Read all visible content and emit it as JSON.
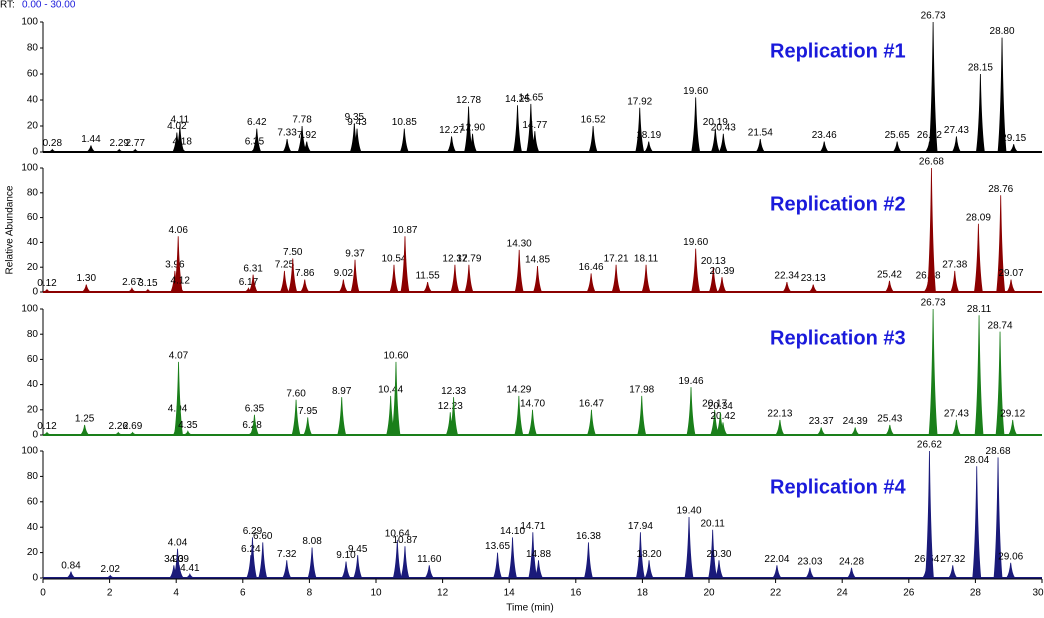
{
  "header": {
    "rt_prefix": "RT:",
    "rt_range": "0.00 - 30.00",
    "xlabel": "Time (min)",
    "ylabel": "Relative Abundance"
  },
  "chart_data": [
    {
      "type": "chromatogram",
      "title": "Replication #1",
      "color": "#000000",
      "x": [
        0.28,
        1.44,
        2.29,
        2.77,
        4.02,
        4.11,
        4.18,
        6.35,
        6.42,
        7.33,
        7.78,
        7.92,
        9.35,
        9.43,
        10.85,
        12.27,
        12.78,
        12.9,
        14.25,
        14.65,
        14.77,
        16.52,
        17.92,
        18.19,
        19.6,
        20.19,
        20.43,
        21.54,
        23.46,
        25.65,
        26.62,
        26.73,
        27.43,
        28.15,
        28.8,
        29.15
      ],
      "x_labels": [
        "0.28",
        "1.44",
        "2.29",
        "2.77",
        "4.02",
        "4.11",
        "4.18",
        "6.35",
        "6.42",
        "7.33",
        "7.78",
        "7.92",
        "9.35",
        "9.43",
        "10.85",
        "12.27",
        "12.78",
        "12.90",
        "14.25",
        "14.65",
        "14.77",
        "16.52",
        "17.92",
        "18.19",
        "19.60",
        "20.19",
        "20.43",
        "21.54",
        "23.46",
        "25.65",
        "26.62",
        "26.73",
        "27.43",
        "28.15",
        "28.80",
        "29.15"
      ],
      "values": [
        2,
        5,
        2,
        2,
        15,
        20,
        3,
        3,
        18,
        10,
        20,
        8,
        22,
        18,
        18,
        12,
        35,
        14,
        36,
        37,
        16,
        20,
        34,
        8,
        42,
        18,
        14,
        10,
        8,
        8,
        8,
        100,
        12,
        60,
        88,
        6
      ],
      "xlim": [
        0,
        30
      ],
      "ylim": [
        0,
        100
      ],
      "yticks": [
        0,
        20,
        40,
        60,
        80,
        100
      ]
    },
    {
      "type": "chromatogram",
      "title": "Replication #2",
      "color": "#8b0000",
      "x": [
        0.12,
        1.3,
        2.67,
        3.15,
        3.96,
        4.06,
        4.12,
        6.17,
        6.31,
        7.25,
        7.5,
        7.86,
        9.02,
        9.37,
        10.54,
        10.87,
        11.55,
        12.37,
        12.79,
        14.3,
        14.85,
        16.46,
        17.21,
        18.11,
        19.6,
        20.13,
        20.39,
        22.34,
        23.13,
        25.42,
        26.58,
        26.68,
        27.38,
        28.09,
        28.76,
        29.07
      ],
      "x_labels": [
        "0.12",
        "1.30",
        "2.67",
        "3.15",
        "3.96",
        "4.06",
        "4.12",
        "6.17",
        "6.31",
        "7.25",
        "7.50",
        "7.86",
        "9.02",
        "9.37",
        "10.54",
        "10.87",
        "11.55",
        "12.37",
        "12.79",
        "14.30",
        "14.85",
        "16.46",
        "17.21",
        "18.11",
        "19.60",
        "20.13",
        "20.39",
        "22.34",
        "23.13",
        "25.42",
        "26.58",
        "26.68",
        "27.38",
        "28.09",
        "28.76",
        "29.07"
      ],
      "values": [
        2,
        6,
        3,
        2,
        17,
        45,
        4,
        3,
        14,
        17,
        27,
        10,
        10,
        26,
        22,
        45,
        8,
        22,
        22,
        34,
        21,
        15,
        22,
        22,
        35,
        20,
        12,
        8,
        6,
        9,
        8,
        100,
        17,
        55,
        78,
        10
      ],
      "xlim": [
        0,
        30
      ],
      "ylim": [
        0,
        100
      ],
      "yticks": [
        0,
        20,
        40,
        60,
        80,
        100
      ]
    },
    {
      "type": "chromatogram",
      "title": "Replication #3",
      "color": "#1a7f1a",
      "x": [
        0.12,
        1.25,
        2.26,
        2.69,
        4.04,
        4.07,
        4.35,
        6.28,
        6.35,
        7.6,
        7.95,
        8.97,
        10.44,
        10.6,
        12.23,
        12.33,
        14.29,
        14.7,
        16.47,
        17.98,
        19.46,
        20.17,
        20.42,
        20.34,
        22.13,
        23.37,
        24.39,
        25.43,
        26.73,
        27.43,
        28.11,
        28.74,
        29.12
      ],
      "x_labels": [
        "0.12",
        "1.25",
        "2.26",
        "2.69",
        "4.04",
        "4.07",
        "4.35",
        "6.28",
        "6.35",
        "7.60",
        "7.95",
        "8.97",
        "10.44",
        "10.60",
        "12.23",
        "12.33",
        "14.29",
        "14.70",
        "16.47",
        "17.98",
        "19.46",
        "20.17",
        "20.42",
        "20.34",
        "22.13",
        "23.37",
        "24.39",
        "25.43",
        "26.73",
        "27.43",
        "28.11",
        "28.74",
        "29.12"
      ],
      "values": [
        2,
        8,
        2,
        2,
        16,
        58,
        3,
        3,
        16,
        28,
        14,
        30,
        31,
        58,
        18,
        30,
        31,
        20,
        20,
        31,
        38,
        20,
        10,
        18,
        12,
        6,
        6,
        8,
        100,
        12,
        95,
        82,
        12
      ],
      "xlim": [
        0,
        30
      ],
      "ylim": [
        0,
        100
      ],
      "yticks": [
        0,
        20,
        40,
        60,
        80,
        100
      ]
    },
    {
      "type": "chromatogram",
      "title": "Replication #4",
      "color": "#1a1a7a",
      "x": [
        0.84,
        2.02,
        3.93,
        4.04,
        4.09,
        4.41,
        6.24,
        6.29,
        6.6,
        7.32,
        8.08,
        9.1,
        9.45,
        10.64,
        10.87,
        11.6,
        13.65,
        14.1,
        14.71,
        14.88,
        16.38,
        17.94,
        18.2,
        19.4,
        20.11,
        20.3,
        22.04,
        23.03,
        24.28,
        26.54,
        26.62,
        27.32,
        28.04,
        28.68,
        29.06
      ],
      "x_labels": [
        "0.84",
        "2.02",
        "3.93",
        "4.04",
        "4.09",
        "4.41",
        "6.24",
        "6.29",
        "6.60",
        "7.32",
        "8.08",
        "9.10",
        "9.45",
        "10.64",
        "10.87",
        "11.60",
        "13.65",
        "14.10",
        "14.71",
        "14.88",
        "16.38",
        "17.94",
        "18.20",
        "19.40",
        "20.11",
        "20.30",
        "22.04",
        "23.03",
        "24.28",
        "26.54",
        "26.62",
        "27.32",
        "28.04",
        "28.68",
        "29.06"
      ],
      "values": [
        5,
        2,
        10,
        23,
        10,
        3,
        18,
        32,
        28,
        14,
        24,
        13,
        18,
        30,
        25,
        10,
        20,
        32,
        36,
        14,
        28,
        36,
        14,
        48,
        38,
        14,
        10,
        8,
        8,
        10,
        100,
        10,
        88,
        95,
        12
      ],
      "xlim": [
        0,
        30
      ],
      "ylim": [
        0,
        100
      ],
      "yticks": [
        0,
        20,
        40,
        60,
        80,
        100
      ],
      "xticks": [
        0,
        2,
        4,
        6,
        8,
        10,
        12,
        14,
        16,
        18,
        20,
        22,
        24,
        26,
        28,
        30
      ]
    }
  ]
}
